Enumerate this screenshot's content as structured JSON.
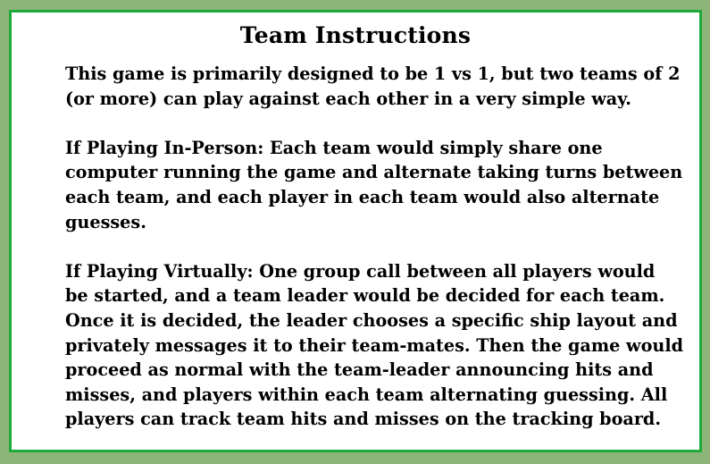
{
  "title": "Team Instructions",
  "paragraphs": {
    "intro": "This game is primarily designed to be 1 vs 1, but two teams of 2\n(or more) can play against each other in a very simple way.",
    "in_person": "If Playing In-Person: Each team would simply share one\ncomputer running the game and alternate taking turns between\neach team, and each player in each team would also alternate\nguesses.",
    "virtual": "If Playing Virtually: One group call between all players would\nbe started, and a team leader would be decided for each team.\nOnce it is decided, the leader chooses a specific ship layout and\nprivately messages it to their team-mates. Then the game would\nproceed as normal with the team-leader announcing hits and\nmisses, and players within each team alternating guessing. All\nplayers can track team hits and misses on the tracking board."
  },
  "colors": {
    "background": "#8db57a",
    "panel": "#ffffff",
    "border": "#1faa3c",
    "text": "#000000"
  }
}
